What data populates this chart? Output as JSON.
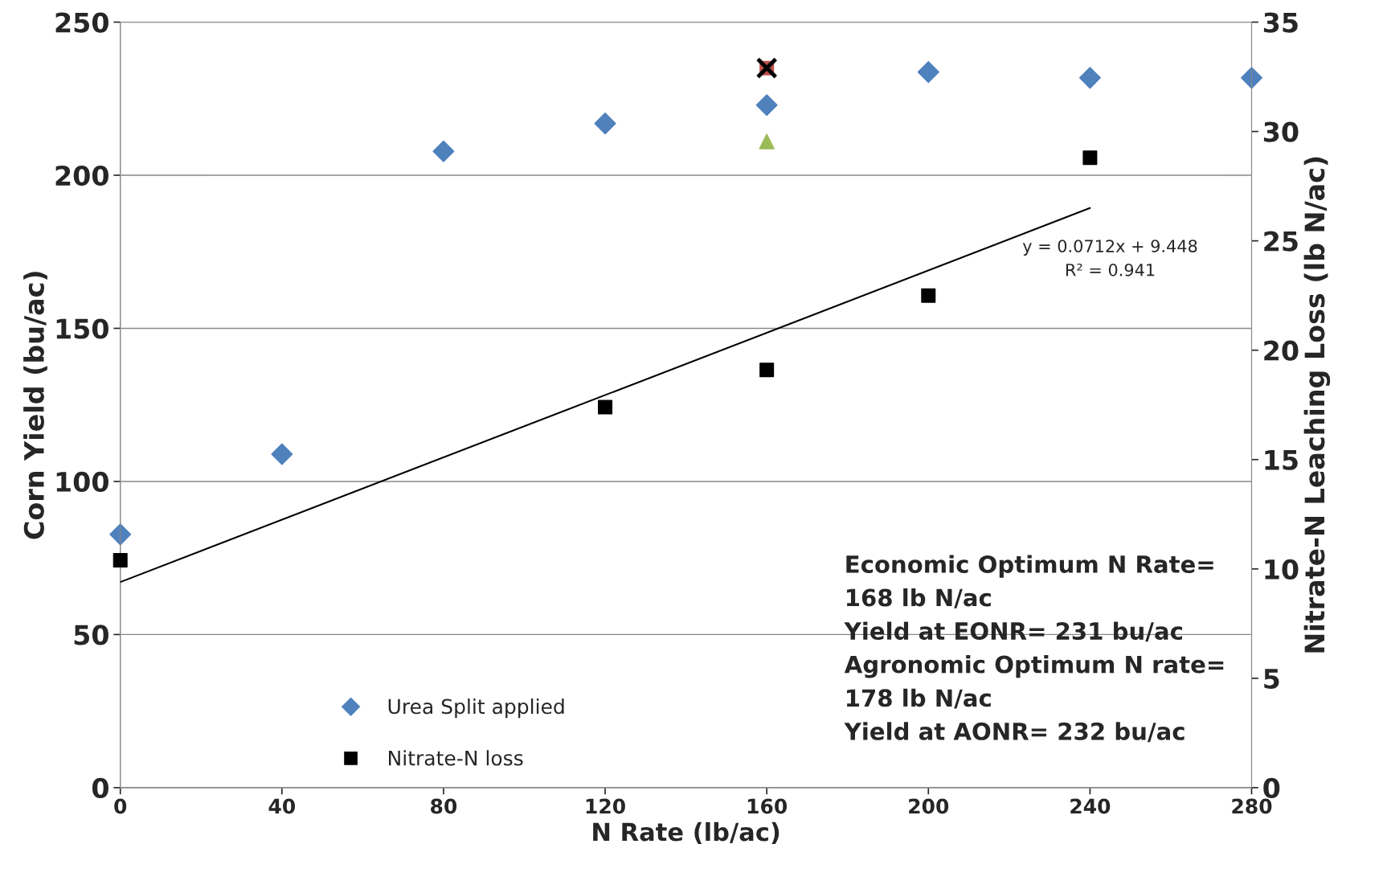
{
  "chart_data": {
    "type": "scatter",
    "xlabel": "N Rate (lb/ac)",
    "ylabel": "Corn Yield (bu/ac)",
    "y2label": "Nitrate-N Leaching Loss (lb N/ac)",
    "xlim": [
      0,
      280
    ],
    "xticks": [
      0,
      40,
      80,
      120,
      160,
      200,
      240,
      280
    ],
    "ylim": [
      0,
      250
    ],
    "yticks": [
      0,
      50,
      100,
      150,
      200,
      250
    ],
    "y2lim": [
      0,
      35
    ],
    "y2ticks": [
      0,
      5,
      10,
      15,
      20,
      25,
      30,
      35
    ],
    "grid": "y",
    "legend": "bottom left",
    "series": [
      {
        "name": "Urea Split applied",
        "color": "#4f81bd",
        "marker": "diamond",
        "x": [
          0,
          40,
          80,
          120,
          160,
          200,
          240,
          280
        ],
        "values": [
          82.7,
          108.9,
          207.8,
          216.9,
          222.9,
          233.7,
          231.8,
          231.8
        ]
      },
      {
        "color": "#c0504d",
        "marker": "square",
        "x": [
          160
        ],
        "values": [
          235
        ]
      },
      {
        "color": "#9bbb59",
        "marker": "triangle",
        "x": [
          160
        ],
        "values": [
          211
        ]
      },
      {
        "color": "#000000",
        "marker": "cross",
        "x": [
          160
        ],
        "values": [
          235
        ]
      },
      {
        "name": "Nitrate-N loss",
        "color": "#000000",
        "marker": "square",
        "axis": "y2",
        "x": [
          0,
          120,
          160,
          200,
          240
        ],
        "values": [
          10.4,
          17.4,
          19.1,
          22.5,
          28.8
        ]
      },
      {
        "type": "line",
        "color": "#000000",
        "marker": "none",
        "axis": "y2",
        "x": [
          0,
          240
        ],
        "values": [
          9.4,
          26.5
        ]
      }
    ],
    "annotations": [
      "y = 0.0712x + 9.448\nR² = 0.941",
      "Economic Optimum N Rate=\n168 lb N/ac\nYield at EONR= 231 bu/ac\nAgronomic Optimum N rate=\n178 lb N/ac\nYield at AONR= 232 bu/ac"
    ]
  }
}
